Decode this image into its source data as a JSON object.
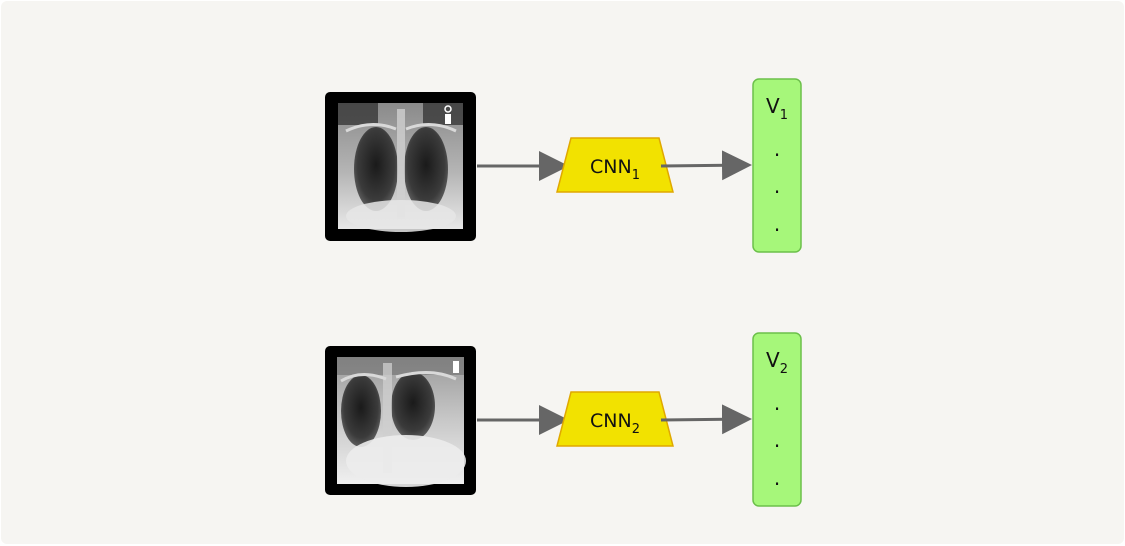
{
  "colors": {
    "background": "#f6f5f2",
    "cnn_fill": "#f2e200",
    "cnn_stroke": "#e0a800",
    "vector_fill": "#a6f77a",
    "vector_stroke": "#6cc04a",
    "arrow": "#666666",
    "frame": "#000000"
  },
  "rows": [
    {
      "image": {
        "icon": "chest-xray-image"
      },
      "cnn": {
        "label": "CNN",
        "subscript": "1"
      },
      "vector": {
        "label": "V",
        "subscript": "1",
        "dots": [
          ".",
          ".",
          "."
        ]
      }
    },
    {
      "image": {
        "icon": "chest-xray-image"
      },
      "cnn": {
        "label": "CNN",
        "subscript": "2"
      },
      "vector": {
        "label": "V",
        "subscript": "2",
        "dots": [
          ".",
          ".",
          "."
        ]
      }
    }
  ]
}
